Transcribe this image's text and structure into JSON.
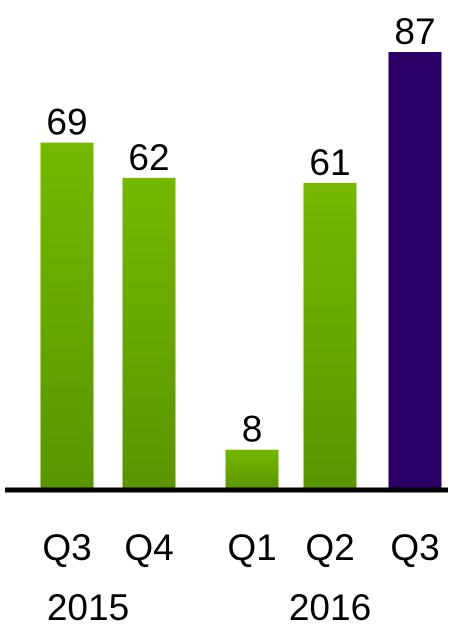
{
  "chart_data": {
    "type": "bar",
    "categories": [
      "Q3",
      "Q4",
      "Q1",
      "Q2",
      "Q3"
    ],
    "groups": [
      {
        "label": "2015",
        "categories": [
          "Q3",
          "Q4"
        ]
      },
      {
        "label": "2016",
        "categories": [
          "Q1",
          "Q2",
          "Q3"
        ]
      }
    ],
    "values": [
      69,
      62,
      8,
      61,
      87
    ],
    "data_labels": [
      "69",
      "62",
      "8",
      "61",
      "87"
    ],
    "bar_colors": [
      "#76b800",
      "#76b800",
      "#76b800",
      "#76b800",
      "#2b0066"
    ],
    "bar_color_dark": [
      "#5a9400",
      "#5a9400",
      "#5a9400",
      "#5a9400",
      "#2b0066"
    ],
    "ylim": [
      0,
      87
    ],
    "grid": false,
    "legend": "none",
    "title": "",
    "xlabel": "",
    "ylabel": ""
  }
}
